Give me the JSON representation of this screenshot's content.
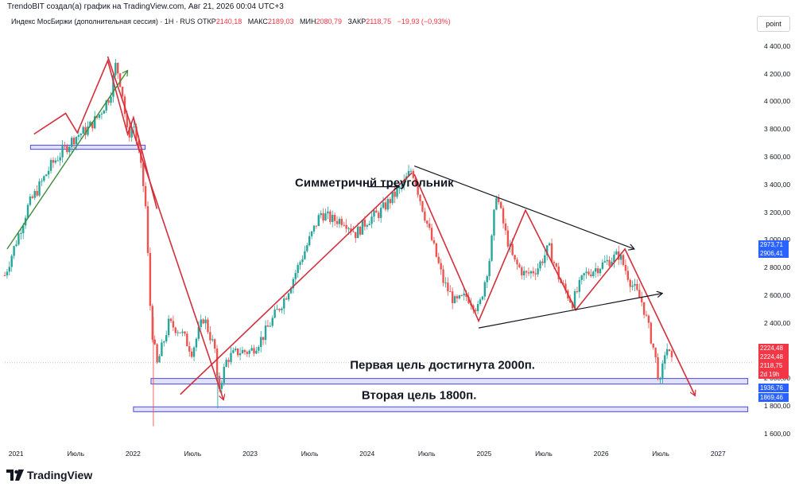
{
  "header_text": "TrendoBIT создал(а) график на TradingView.com, Авг 21, 2026 00:04 UTC+3",
  "legend": {
    "symbol": "Индекс МосБиржи (дополнительная сессия) · 1Н · RUS",
    "open_label": "ОТКР",
    "open": "2140,18",
    "high_label": "МАКС",
    "high": "2189,03",
    "low_label": "МИН",
    "low": "2080,79",
    "close_label": "ЗАКР",
    "close": "2118,75",
    "change": "−19,93 (−0,93%)"
  },
  "axis_button": "point",
  "footer_brand": "TradingView",
  "colors": {
    "up": "#26a69a",
    "down": "#ef5350",
    "red_line": "#d32f3b",
    "green_line": "#3d8b37",
    "band": "#4c4cdd",
    "blue_tag": "#2962ff",
    "red_tag": "#f23645"
  },
  "chart_data": {
    "type": "candlestick",
    "y_ticks": [
      "4 400,00",
      "4 200,00",
      "4 000,00",
      "3 800,00",
      "3 600,00",
      "3 400,00",
      "3 200,00",
      "3 000,00",
      "2 800,00",
      "2 600,00",
      "2 400,00",
      "2 000,00",
      "1 800,00",
      "1 600,00"
    ],
    "y_tick_values": [
      4400,
      4200,
      4000,
      3800,
      3600,
      3400,
      3200,
      3000,
      2800,
      2600,
      2400,
      2000,
      1800,
      1600
    ],
    "x_ticks": [
      "2021",
      "Июль",
      "2022",
      "Июль",
      "2023",
      "Июль",
      "2024",
      "Июль",
      "2025",
      "Июль",
      "2026",
      "Июль",
      "2027"
    ],
    "x_tick_values": [
      2021.0,
      2021.5,
      2022.0,
      2022.5,
      2023.0,
      2023.5,
      2024.0,
      2024.5,
      2025.0,
      2025.5,
      2026.0,
      2026.5,
      2027.0
    ],
    "ylim": [
      1520,
      4520
    ],
    "xlim": [
      2020.9,
      2027.3
    ],
    "price_tags": [
      {
        "text": "2973,71",
        "value": 2973.71,
        "color": "blue"
      },
      {
        "text": "2906,41",
        "value": 2906.41,
        "color": "blue"
      },
      {
        "text": "2224,48",
        "value": 2224.48,
        "color": "red"
      },
      {
        "text": "2224,48",
        "value": 2224.48,
        "color": "red"
      },
      {
        "text": "2118,75",
        "value": 2118.75,
        "color": "red"
      },
      {
        "text": "2d 19h",
        "value": 2075,
        "color": "red"
      },
      {
        "text": "1936,76",
        "value": 1936.76,
        "color": "blue"
      },
      {
        "text": "1869,46",
        "value": 1869.46,
        "color": "blue"
      }
    ],
    "price_path": [
      [
        2020.9,
        2750
      ],
      [
        2021.0,
        3000
      ],
      [
        2021.1,
        3250
      ],
      [
        2021.2,
        3400
      ],
      [
        2021.3,
        3550
      ],
      [
        2021.4,
        3650
      ],
      [
        2021.5,
        3750
      ],
      [
        2021.6,
        3800
      ],
      [
        2021.7,
        3900
      ],
      [
        2021.8,
        4050
      ],
      [
        2021.85,
        4280
      ],
      [
        2021.9,
        4100
      ],
      [
        2021.95,
        3750
      ],
      [
        2022.0,
        3850
      ],
      [
        2022.05,
        3600
      ],
      [
        2022.1,
        3300
      ],
      [
        2022.15,
        2400
      ],
      [
        2022.2,
        2100
      ],
      [
        2022.3,
        2400
      ],
      [
        2022.4,
        2350
      ],
      [
        2022.5,
        2200
      ],
      [
        2022.6,
        2450
      ],
      [
        2022.7,
        2200
      ],
      [
        2022.72,
        1900
      ],
      [
        2022.8,
        2150
      ],
      [
        2022.9,
        2200
      ],
      [
        2023.0,
        2200
      ],
      [
        2023.1,
        2300
      ],
      [
        2023.2,
        2450
      ],
      [
        2023.3,
        2600
      ],
      [
        2023.4,
        2800
      ],
      [
        2023.5,
        3000
      ],
      [
        2023.6,
        3200
      ],
      [
        2023.7,
        3150
      ],
      [
        2023.8,
        3150
      ],
      [
        2023.9,
        3050
      ],
      [
        2024.0,
        3150
      ],
      [
        2024.1,
        3200
      ],
      [
        2024.2,
        3300
      ],
      [
        2024.3,
        3400
      ],
      [
        2024.38,
        3520
      ],
      [
        2024.45,
        3300
      ],
      [
        2024.55,
        3000
      ],
      [
        2024.65,
        2700
      ],
      [
        2024.75,
        2550
      ],
      [
        2024.85,
        2600
      ],
      [
        2024.95,
        2500
      ],
      [
        2025.05,
        2900
      ],
      [
        2025.1,
        3350
      ],
      [
        2025.18,
        3050
      ],
      [
        2025.25,
        2850
      ],
      [
        2025.35,
        2750
      ],
      [
        2025.45,
        2800
      ],
      [
        2025.55,
        2950
      ],
      [
        2025.65,
        2700
      ],
      [
        2025.75,
        2550
      ],
      [
        2025.85,
        2750
      ],
      [
        2025.95,
        2800
      ],
      [
        2026.05,
        2850
      ],
      [
        2026.15,
        2900
      ],
      [
        2026.25,
        2700
      ],
      [
        2026.35,
        2550
      ],
      [
        2026.45,
        2200
      ],
      [
        2026.5,
        1950
      ],
      [
        2026.55,
        2250
      ],
      [
        2026.6,
        2120
      ]
    ],
    "bands": [
      {
        "from": 2021.12,
        "to": 2022.1,
        "low": 3660,
        "high": 3690
      },
      {
        "from": 2022.15,
        "to": 2027.25,
        "low": 1965,
        "high": 2005
      },
      {
        "from": 2022.0,
        "to": 2027.25,
        "low": 1765,
        "high": 1800
      }
    ],
    "red_lines": [
      [
        [
          2021.15,
          3770
        ],
        [
          2021.42,
          3920
        ],
        [
          2021.52,
          3780
        ],
        [
          2021.78,
          4300
        ],
        [
          2021.95,
          3770
        ],
        [
          2022.0,
          3890
        ],
        [
          2022.2,
          3230
        ]
      ],
      [
        [
          2021.78,
          4330
        ],
        [
          2022.77,
          1850
        ]
      ],
      [
        [
          2022.4,
          1890
        ],
        [
          2024.38,
          3490
        ]
      ],
      [
        [
          2024.4,
          3480
        ],
        [
          2024.95,
          2420
        ],
        [
          2025.35,
          3220
        ],
        [
          2025.78,
          2500
        ],
        [
          2026.2,
          2940
        ],
        [
          2026.8,
          1880
        ]
      ]
    ],
    "black_lines": [
      [
        [
          2024.4,
          3540
        ],
        [
          2026.28,
          2940
        ]
      ],
      [
        [
          2024.95,
          2370
        ],
        [
          2026.52,
          2620
        ]
      ]
    ],
    "green_line": [
      [
        2020.92,
        2940
      ],
      [
        2021.95,
        4230
      ]
    ],
    "annotations": [
      {
        "text": "Симметричнй треугольник",
        "x": 2023.38,
        "y": 3390
      },
      {
        "text": "Первая цель достигнута 2000п.",
        "x": 2023.85,
        "y": 2075
      },
      {
        "text": "Вторая цель 1800п.",
        "x": 2023.95,
        "y": 1855
      }
    ]
  }
}
